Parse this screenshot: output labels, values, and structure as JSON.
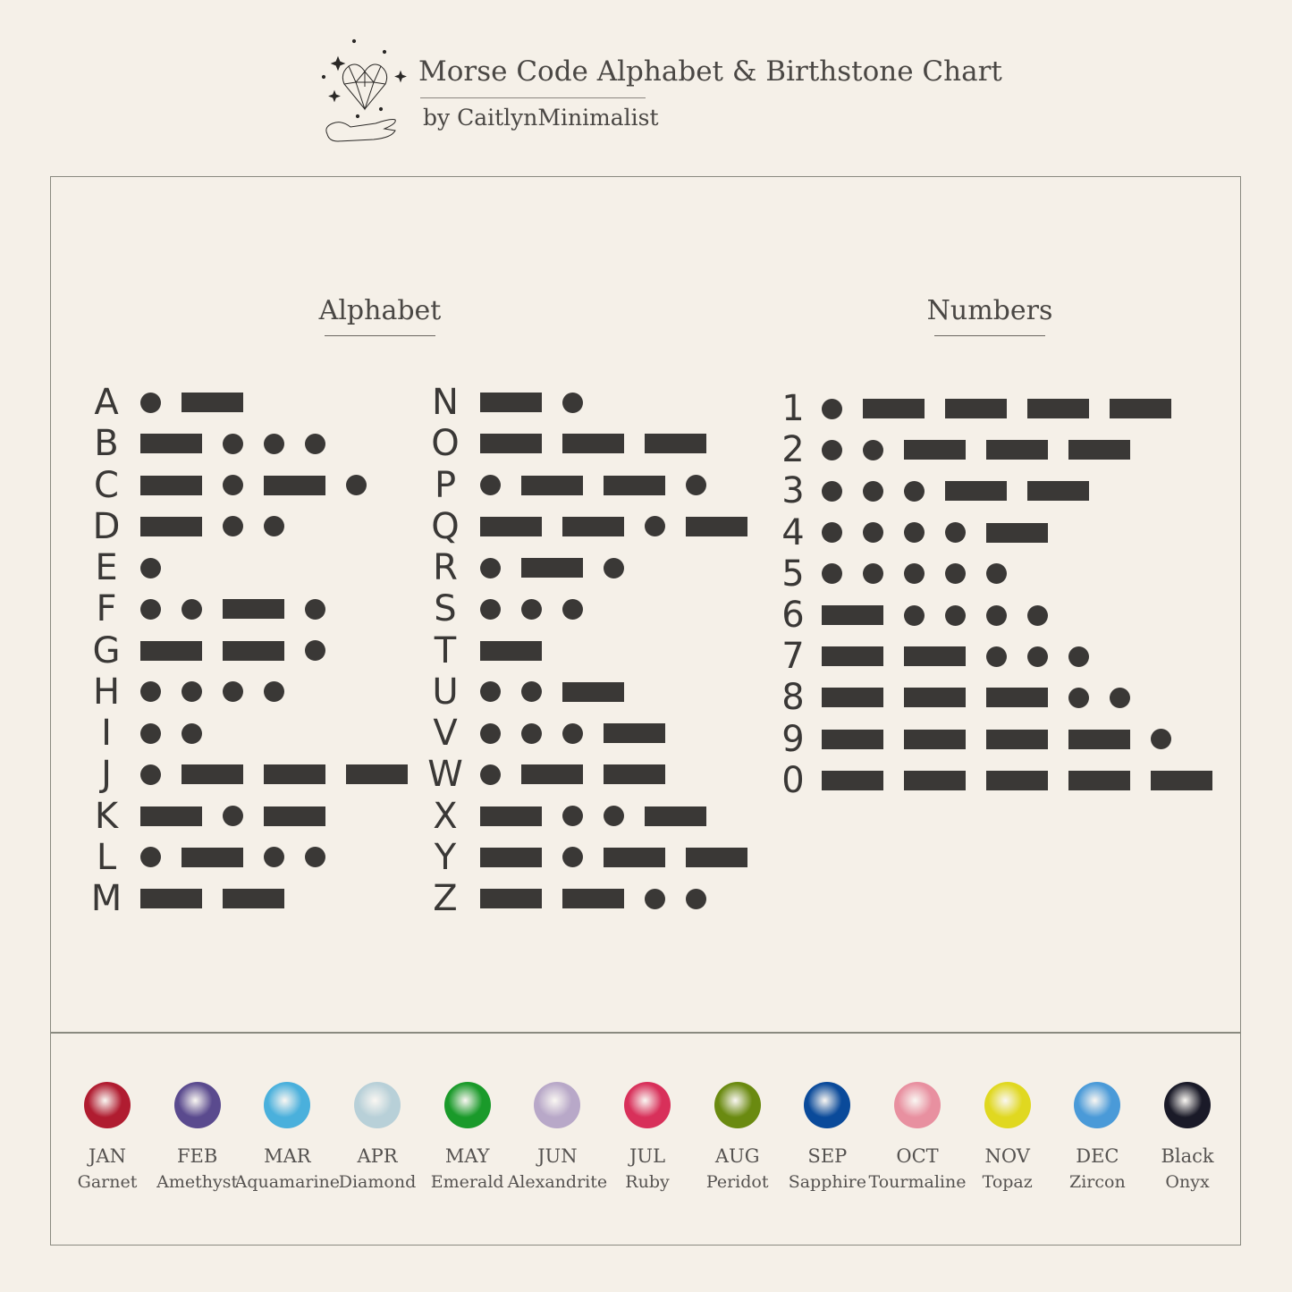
{
  "header": {
    "title": "Morse Code Alphabet & Birthstone Chart",
    "subtitle": "by CaitlynMinimalist",
    "logo": "heart-gem-hand-logo"
  },
  "sections": {
    "alphabet": "Alphabet",
    "numbers": "Numbers"
  },
  "alphabet_left": [
    {
      "char": "A",
      "code": ".-"
    },
    {
      "char": "B",
      "code": "-..."
    },
    {
      "char": "C",
      "code": "-.-."
    },
    {
      "char": "D",
      "code": "-.."
    },
    {
      "char": "E",
      "code": "."
    },
    {
      "char": "F",
      "code": "..-."
    },
    {
      "char": "G",
      "code": "--."
    },
    {
      "char": "H",
      "code": "...."
    },
    {
      "char": "I",
      "code": ".."
    },
    {
      "char": "J",
      "code": ".---"
    },
    {
      "char": "K",
      "code": "-.-"
    },
    {
      "char": "L",
      "code": ".-.."
    },
    {
      "char": "M",
      "code": "--"
    }
  ],
  "alphabet_right": [
    {
      "char": "N",
      "code": "-."
    },
    {
      "char": "O",
      "code": "---"
    },
    {
      "char": "P",
      "code": ".--."
    },
    {
      "char": "Q",
      "code": "--.-"
    },
    {
      "char": "R",
      "code": ".-."
    },
    {
      "char": "S",
      "code": "..."
    },
    {
      "char": "T",
      "code": "-"
    },
    {
      "char": "U",
      "code": "..-"
    },
    {
      "char": "V",
      "code": "...-"
    },
    {
      "char": "W",
      "code": ".--"
    },
    {
      "char": "X",
      "code": "-..-"
    },
    {
      "char": "Y",
      "code": "-.--"
    },
    {
      "char": "Z",
      "code": "--.."
    }
  ],
  "numbers": [
    {
      "char": "1",
      "code": ".----"
    },
    {
      "char": "2",
      "code": "..---"
    },
    {
      "char": "3",
      "code": "...--"
    },
    {
      "char": "4",
      "code": "....-"
    },
    {
      "char": "5",
      "code": "....."
    },
    {
      "char": "6",
      "code": "-...."
    },
    {
      "char": "7",
      "code": "--..."
    },
    {
      "char": "8",
      "code": "---.."
    },
    {
      "char": "9",
      "code": "----."
    },
    {
      "char": "0",
      "code": "-----"
    }
  ],
  "birthstones": [
    {
      "month": "JAN",
      "stone": "Garnet",
      "color": "#b01c30"
    },
    {
      "month": "FEB",
      "stone": "Amethyst",
      "color": "#5a4a8e"
    },
    {
      "month": "MAR",
      "stone": "Aquamarine",
      "color": "#4ab0dc"
    },
    {
      "month": "APR",
      "stone": "Diamond",
      "color": "#b8d0d8"
    },
    {
      "month": "MAY",
      "stone": "Emerald",
      "color": "#1a9a2a"
    },
    {
      "month": "JUN",
      "stone": "Alexandrite",
      "color": "#b8a8c8"
    },
    {
      "month": "JUL",
      "stone": "Ruby",
      "color": "#d8305a"
    },
    {
      "month": "AUG",
      "stone": "Peridot",
      "color": "#6a8a10"
    },
    {
      "month": "SEP",
      "stone": "Sapphire",
      "color": "#0a4a9a"
    },
    {
      "month": "OCT",
      "stone": "Tourmaline",
      "color": "#e890a0"
    },
    {
      "month": "NOV",
      "stone": "Topaz",
      "color": "#e0d820"
    },
    {
      "month": "DEC",
      "stone": "Zircon",
      "color": "#4a9ad8"
    },
    {
      "month": "Black",
      "stone": "Onyx",
      "color": "#1a1a28"
    }
  ]
}
